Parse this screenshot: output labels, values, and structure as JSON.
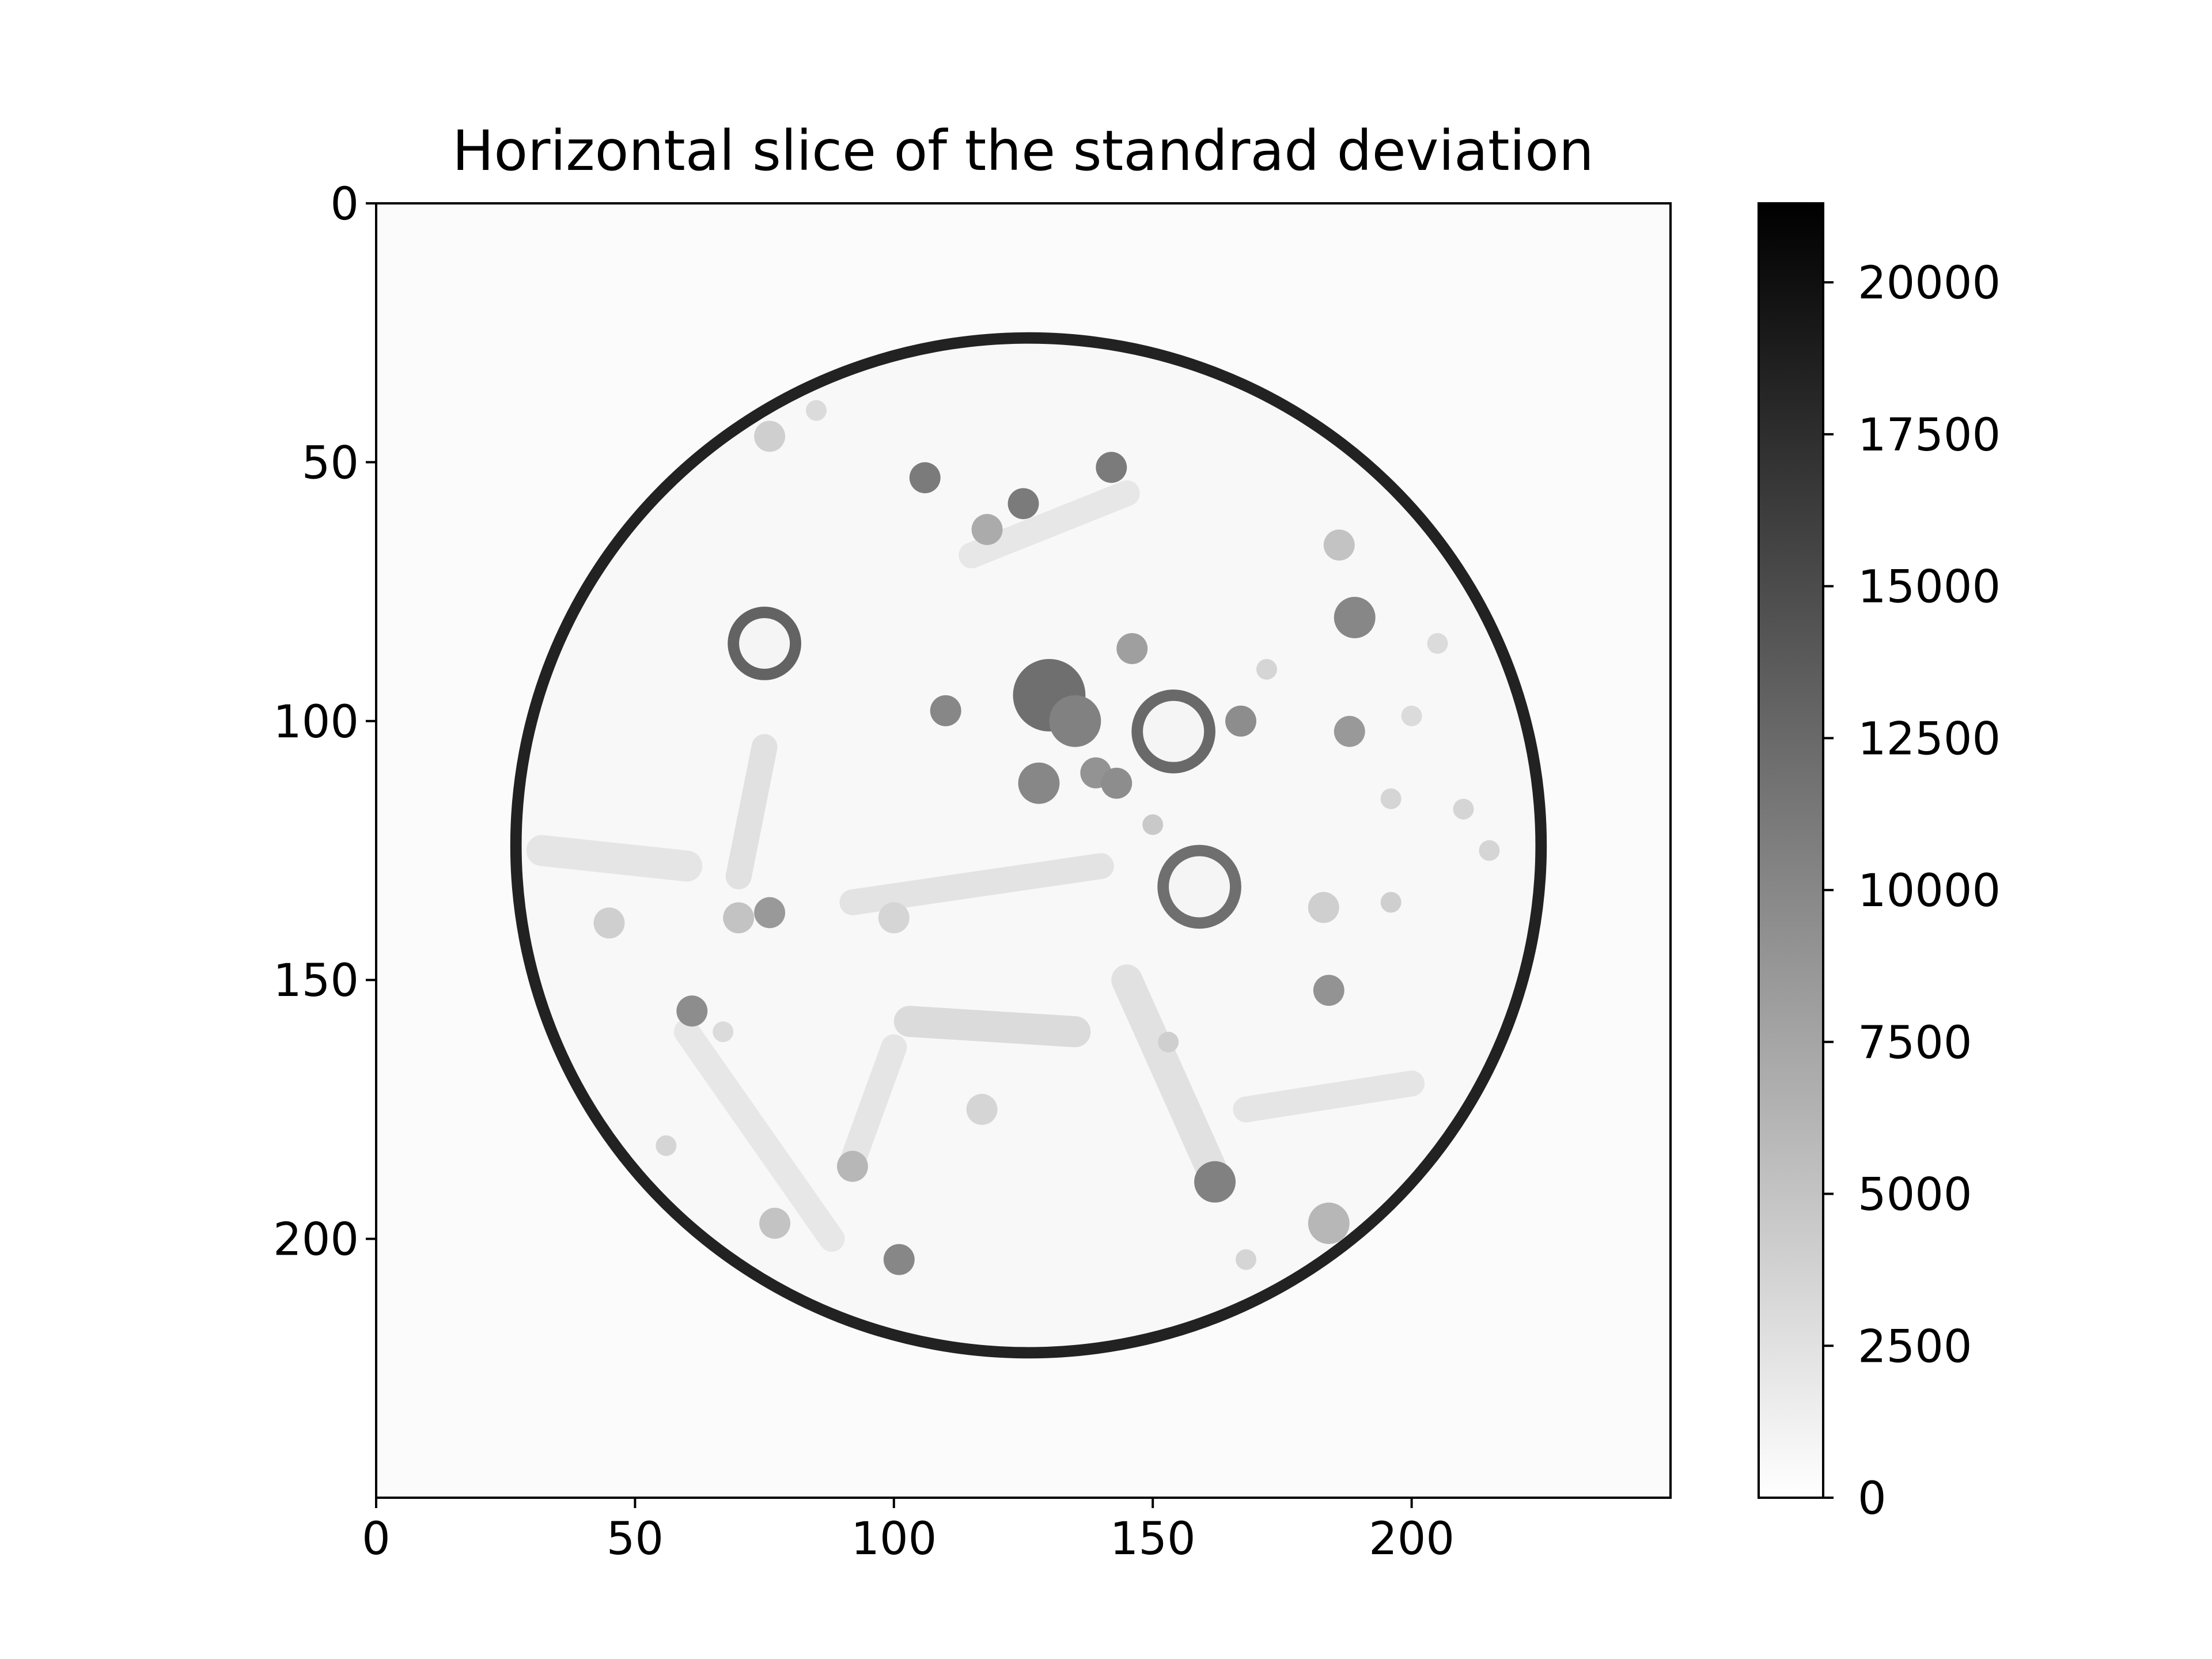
{
  "chart_data": {
    "type": "heatmap",
    "title": "Horizontal slice of the standrad deviation",
    "xlabel": "",
    "ylabel": "",
    "xlim": [
      0,
      250
    ],
    "ylim": [
      250,
      0
    ],
    "x_ticks": [
      "0",
      "50",
      "100",
      "150",
      "200"
    ],
    "y_ticks": [
      "0",
      "50",
      "100",
      "150",
      "200"
    ],
    "colormap": "gray_r",
    "colorbar": {
      "range": [
        0,
        21300
      ],
      "ticks": [
        "0",
        "2500",
        "5000",
        "7500",
        "10000",
        "12500",
        "15000",
        "17500",
        "20000"
      ],
      "color_low": "#ffffff",
      "color_high": "#000000"
    },
    "background_value": 300,
    "disk": {
      "center": [
        126,
        124
      ],
      "radii": [
        99,
        98
      ],
      "rim_value": 18500,
      "interior_value": 600
    },
    "blobs": [
      {
        "x": 75,
        "y": 85,
        "r": 6,
        "ring": true,
        "value": 13000
      },
      {
        "x": 130,
        "y": 95,
        "r": 7,
        "ring": false,
        "value": 12000
      },
      {
        "x": 135,
        "y": 100,
        "r": 5,
        "ring": false,
        "value": 10500
      },
      {
        "x": 154,
        "y": 102,
        "r": 7,
        "ring": true,
        "value": 12500
      },
      {
        "x": 159,
        "y": 132,
        "r": 7,
        "ring": true,
        "value": 12000
      },
      {
        "x": 106,
        "y": 53,
        "r": 3,
        "ring": false,
        "value": 11000
      },
      {
        "x": 125,
        "y": 58,
        "r": 3,
        "ring": false,
        "value": 11000
      },
      {
        "x": 142,
        "y": 51,
        "r": 3,
        "ring": false,
        "value": 11000
      },
      {
        "x": 118,
        "y": 63,
        "r": 3,
        "ring": false,
        "value": 7000
      },
      {
        "x": 110,
        "y": 98,
        "r": 3,
        "ring": false,
        "value": 10000
      },
      {
        "x": 146,
        "y": 86,
        "r": 3,
        "ring": false,
        "value": 8000
      },
      {
        "x": 167,
        "y": 100,
        "r": 3,
        "ring": false,
        "value": 9500
      },
      {
        "x": 189,
        "y": 80,
        "r": 4,
        "ring": false,
        "value": 10000
      },
      {
        "x": 188,
        "y": 102,
        "r": 3,
        "ring": false,
        "value": 8500
      },
      {
        "x": 186,
        "y": 66,
        "r": 3,
        "ring": false,
        "value": 5000
      },
      {
        "x": 128,
        "y": 112,
        "r": 4,
        "ring": false,
        "value": 10000
      },
      {
        "x": 139,
        "y": 110,
        "r": 3,
        "ring": false,
        "value": 9000
      },
      {
        "x": 143,
        "y": 112,
        "r": 3,
        "ring": false,
        "value": 9500
      },
      {
        "x": 76,
        "y": 137,
        "r": 3,
        "ring": false,
        "value": 8500
      },
      {
        "x": 61,
        "y": 156,
        "r": 3,
        "ring": false,
        "value": 9500
      },
      {
        "x": 184,
        "y": 152,
        "r": 3,
        "ring": false,
        "value": 9000
      },
      {
        "x": 162,
        "y": 189,
        "r": 4,
        "ring": false,
        "value": 10500
      },
      {
        "x": 101,
        "y": 204,
        "r": 3,
        "ring": false,
        "value": 10000
      },
      {
        "x": 92,
        "y": 186,
        "r": 3,
        "ring": false,
        "value": 6000
      },
      {
        "x": 184,
        "y": 197,
        "r": 4,
        "ring": false,
        "value": 6000
      },
      {
        "x": 77,
        "y": 197,
        "r": 3,
        "ring": false,
        "value": 5000
      },
      {
        "x": 45,
        "y": 139,
        "r": 3,
        "ring": false,
        "value": 4000
      },
      {
        "x": 76,
        "y": 45,
        "r": 3,
        "ring": false,
        "value": 4000
      },
      {
        "x": 85,
        "y": 40,
        "r": 2,
        "ring": false,
        "value": 3000
      },
      {
        "x": 183,
        "y": 136,
        "r": 3,
        "ring": false,
        "value": 4000
      },
      {
        "x": 196,
        "y": 135,
        "r": 2,
        "ring": false,
        "value": 4000
      },
      {
        "x": 172,
        "y": 90,
        "r": 2,
        "ring": false,
        "value": 3500
      },
      {
        "x": 205,
        "y": 85,
        "r": 2,
        "ring": false,
        "value": 3000
      },
      {
        "x": 200,
        "y": 99,
        "r": 2,
        "ring": false,
        "value": 3000
      },
      {
        "x": 196,
        "y": 115,
        "r": 2,
        "ring": false,
        "value": 3500
      },
      {
        "x": 210,
        "y": 117,
        "r": 2,
        "ring": false,
        "value": 3500
      },
      {
        "x": 215,
        "y": 125,
        "r": 2,
        "ring": false,
        "value": 3500
      },
      {
        "x": 117,
        "y": 175,
        "r": 3,
        "ring": false,
        "value": 3500
      },
      {
        "x": 100,
        "y": 138,
        "r": 3,
        "ring": false,
        "value": 3500
      },
      {
        "x": 70,
        "y": 138,
        "r": 3,
        "ring": false,
        "value": 5000
      },
      {
        "x": 150,
        "y": 120,
        "r": 2,
        "ring": false,
        "value": 4500
      },
      {
        "x": 153,
        "y": 162,
        "r": 2,
        "ring": false,
        "value": 4000
      },
      {
        "x": 56,
        "y": 182,
        "r": 2,
        "ring": false,
        "value": 3500
      },
      {
        "x": 67,
        "y": 160,
        "r": 2,
        "ring": false,
        "value": 3000
      },
      {
        "x": 168,
        "y": 204,
        "r": 2,
        "ring": false,
        "value": 3500
      }
    ],
    "bands": [
      {
        "x1": 75,
        "y1": 105,
        "x2": 70,
        "y2": 130,
        "w": 5,
        "value": 2500
      },
      {
        "x1": 32,
        "y1": 125,
        "x2": 60,
        "y2": 128,
        "w": 6,
        "value": 2200
      },
      {
        "x1": 103,
        "y1": 158,
        "x2": 135,
        "y2": 160,
        "w": 6,
        "value": 3000
      },
      {
        "x1": 145,
        "y1": 150,
        "x2": 162,
        "y2": 188,
        "w": 6,
        "value": 2500
      },
      {
        "x1": 100,
        "y1": 163,
        "x2": 92,
        "y2": 185,
        "w": 5,
        "value": 2200
      },
      {
        "x1": 168,
        "y1": 175,
        "x2": 200,
        "y2": 170,
        "w": 5,
        "value": 2200
      },
      {
        "x1": 115,
        "y1": 68,
        "x2": 145,
        "y2": 56,
        "w": 5,
        "value": 2000
      },
      {
        "x1": 92,
        "y1": 135,
        "x2": 140,
        "y2": 128,
        "w": 5,
        "value": 2300
      },
      {
        "x1": 60,
        "y1": 160,
        "x2": 88,
        "y2": 200,
        "w": 5,
        "value": 2000
      }
    ]
  }
}
